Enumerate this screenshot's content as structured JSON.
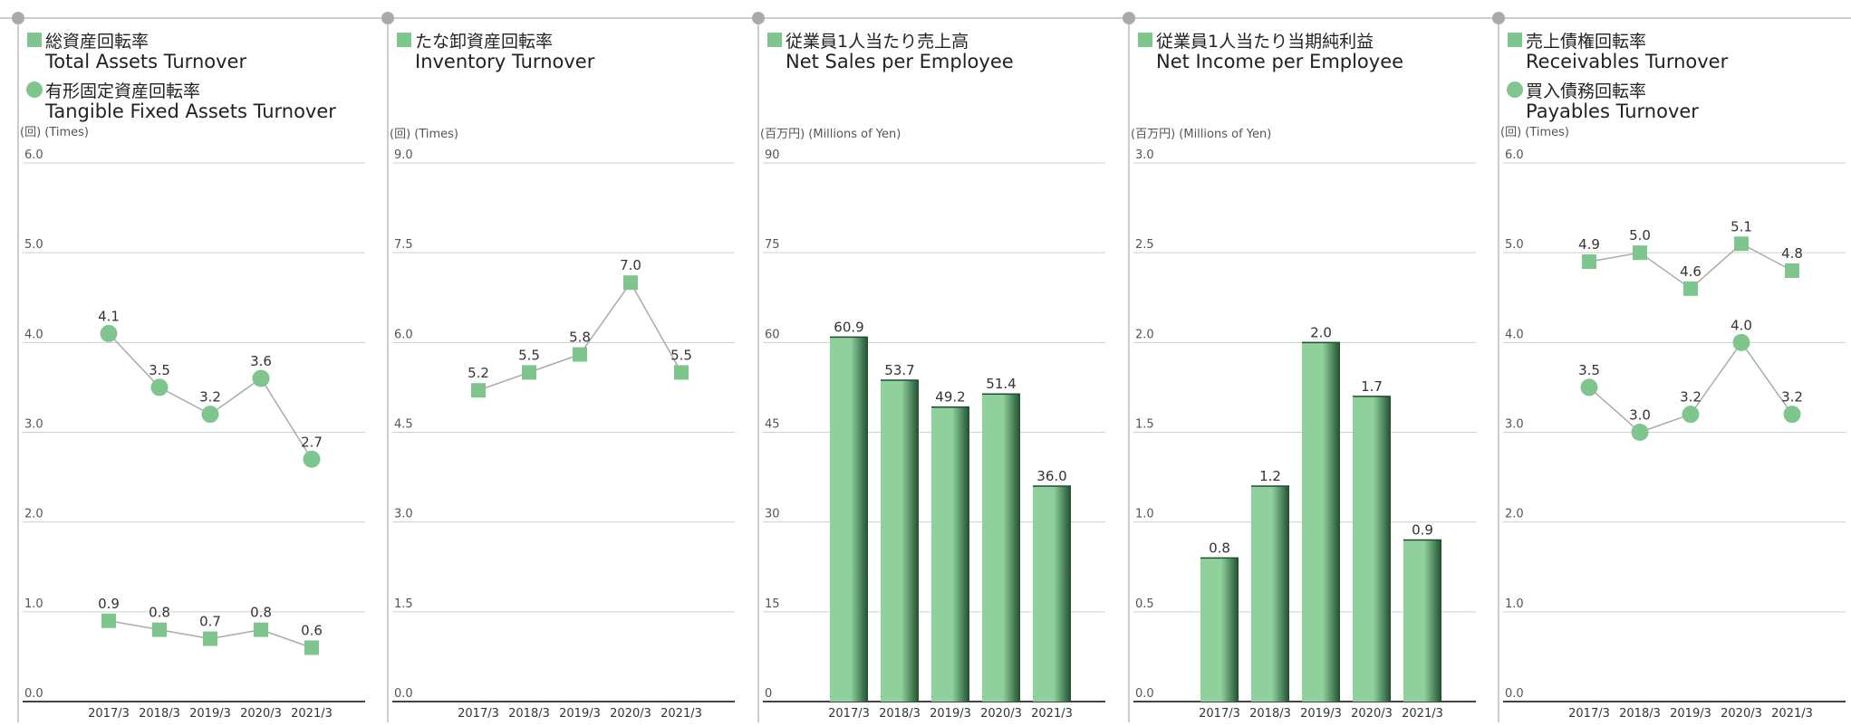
{
  "colors": {
    "marker": "#7ec58e",
    "bar_light": "#8fd09c",
    "bar_dark": "#1f4f2f",
    "line": "#aaaaaa",
    "grid": "#cfcfcf",
    "axis": "#444444",
    "divider": "#999999",
    "text": "#333333"
  },
  "chart_data": [
    {
      "type": "line",
      "title_lines": [
        {
          "marker": "square",
          "jp": "総資産回転率",
          "en": "Total Assets Turnover"
        },
        {
          "marker": "circle",
          "jp": "有形固定資産回転率",
          "en": "Tangible Fixed Assets Turnover"
        }
      ],
      "unit_label": "(回) (Times)",
      "categories": [
        "2017/3",
        "2018/3",
        "2019/3",
        "2020/3",
        "2021/3"
      ],
      "yticks": [
        "0.0",
        "1.0",
        "2.0",
        "3.0",
        "4.0",
        "5.0",
        "6.0"
      ],
      "ylim": [
        0,
        6
      ],
      "grid": true,
      "series": [
        {
          "marker": "square",
          "values": [
            0.9,
            0.8,
            0.7,
            0.8,
            0.6
          ],
          "labels": [
            "0.9",
            "0.8",
            "0.7",
            "0.8",
            "0.6"
          ]
        },
        {
          "marker": "circle",
          "values": [
            4.1,
            3.5,
            3.2,
            3.6,
            2.7
          ],
          "labels": [
            "4.1",
            "3.5",
            "3.2",
            "3.6",
            "2.7"
          ]
        }
      ]
    },
    {
      "type": "line",
      "title_lines": [
        {
          "marker": "square",
          "jp": "たな卸資産回転率",
          "en": "Inventory Turnover"
        }
      ],
      "unit_label": "(回) (Times)",
      "categories": [
        "2017/3",
        "2018/3",
        "2019/3",
        "2020/3",
        "2021/3"
      ],
      "yticks": [
        "0.0",
        "1.5",
        "3.0",
        "4.5",
        "6.0",
        "7.5",
        "9.0"
      ],
      "ylim": [
        0,
        9
      ],
      "grid": true,
      "series": [
        {
          "marker": "square",
          "values": [
            5.2,
            5.5,
            5.8,
            7.0,
            5.5
          ],
          "labels": [
            "5.2",
            "5.5",
            "5.8",
            "7.0",
            "5.5"
          ]
        }
      ]
    },
    {
      "type": "bar",
      "title_lines": [
        {
          "marker": "square",
          "jp": "従業員1人当たり売上高",
          "en": "Net Sales per Employee"
        }
      ],
      "unit_label": "(百万円) (Millions of Yen)",
      "categories": [
        "2017/3",
        "2018/3",
        "2019/3",
        "2020/3",
        "2021/3"
      ],
      "yticks": [
        "0",
        "15",
        "30",
        "45",
        "60",
        "75",
        "90"
      ],
      "ylim": [
        0,
        90
      ],
      "grid": true,
      "values": [
        60.9,
        53.7,
        49.2,
        51.4,
        36.0
      ],
      "labels": [
        "60.9",
        "53.7",
        "49.2",
        "51.4",
        "36.0"
      ]
    },
    {
      "type": "bar",
      "title_lines": [
        {
          "marker": "square",
          "jp": "従業員1人当たり当期純利益",
          "en": "Net Income per Employee"
        }
      ],
      "unit_label": "(百万円) (Millions of Yen)",
      "categories": [
        "2017/3",
        "2018/3",
        "2019/3",
        "2020/3",
        "2021/3"
      ],
      "yticks": [
        "0.0",
        "0.5",
        "1.0",
        "1.5",
        "2.0",
        "2.5",
        "3.0"
      ],
      "ylim": [
        0,
        3
      ],
      "grid": true,
      "values": [
        0.8,
        1.2,
        2.0,
        1.7,
        0.9
      ],
      "labels": [
        "0.8",
        "1.2",
        "2.0",
        "1.7",
        "0.9"
      ]
    },
    {
      "type": "line",
      "title_lines": [
        {
          "marker": "square",
          "jp": "売上債権回転率",
          "en": "Receivables Turnover"
        },
        {
          "marker": "circle",
          "jp": "買入債務回転率",
          "en": "Payables Turnover"
        }
      ],
      "unit_label": "(回) (Times)",
      "categories": [
        "2017/3",
        "2018/3",
        "2019/3",
        "2020/3",
        "2021/3"
      ],
      "yticks": [
        "0.0",
        "1.0",
        "2.0",
        "3.0",
        "4.0",
        "5.0",
        "6.0"
      ],
      "ylim": [
        0,
        6
      ],
      "grid": true,
      "series": [
        {
          "marker": "square",
          "values": [
            4.9,
            5.0,
            4.6,
            5.1,
            4.8
          ],
          "labels": [
            "4.9",
            "5.0",
            "4.6",
            "5.1",
            "4.8"
          ]
        },
        {
          "marker": "circle",
          "values": [
            3.5,
            3.0,
            3.2,
            4.0,
            3.2
          ],
          "labels": [
            "3.5",
            "3.0",
            "3.2",
            "4.0",
            "3.2"
          ]
        }
      ]
    }
  ]
}
